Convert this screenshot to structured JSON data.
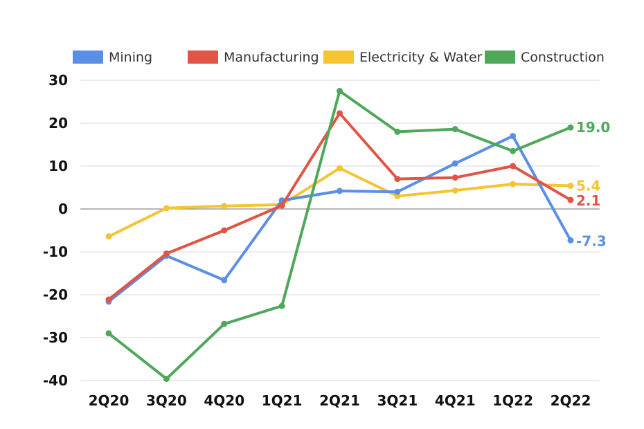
{
  "chart_data": {
    "type": "line",
    "categories": [
      "2Q20",
      "3Q20",
      "4Q20",
      "1Q21",
      "2Q21",
      "3Q21",
      "4Q21",
      "1Q22",
      "2Q22"
    ],
    "ylim": [
      -40,
      30
    ],
    "yticks": [
      30,
      20,
      10,
      0,
      -10,
      -20,
      -30,
      -40
    ],
    "grid": true,
    "legend_position": "top",
    "series": [
      {
        "name": "Mining",
        "color": "#5b8fe6",
        "values": [
          -21.6,
          -10.9,
          -16.6,
          2.0,
          4.2,
          4.0,
          10.6,
          17.0,
          -7.3
        ],
        "end_label": "-7.3"
      },
      {
        "name": "Manufacturing",
        "color": "#e05545",
        "values": [
          -21.1,
          -10.4,
          -5.0,
          0.8,
          22.3,
          7.0,
          7.3,
          10.0,
          2.1
        ],
        "end_label": "2.1"
      },
      {
        "name": "Electricity & Water",
        "color": "#f6c431",
        "values": [
          -6.4,
          0.2,
          0.7,
          1.0,
          9.5,
          3.0,
          4.3,
          5.8,
          5.4
        ],
        "end_label": "5.4"
      },
      {
        "name": "Construction",
        "color": "#4fa75a",
        "values": [
          -29.0,
          -39.6,
          -26.8,
          -22.6,
          27.5,
          18.0,
          18.6,
          13.5,
          19.0
        ],
        "end_label": "19.0"
      }
    ]
  }
}
